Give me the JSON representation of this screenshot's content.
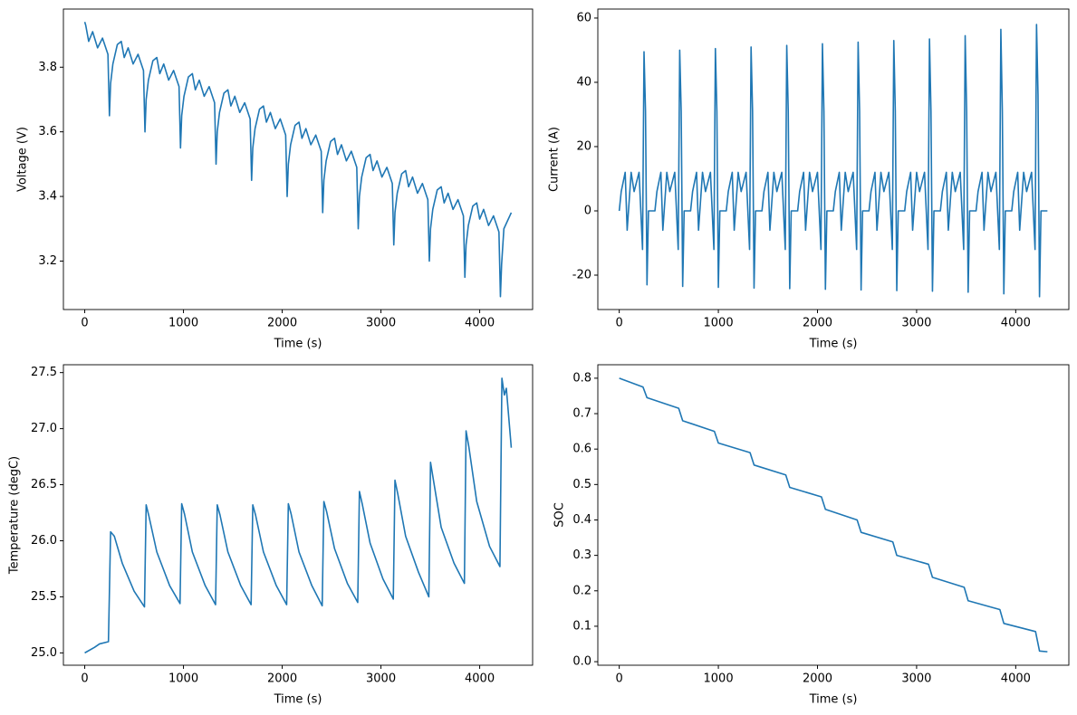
{
  "chart_data": [
    {
      "type": "line",
      "xlabel": "Time (s)",
      "ylabel": "Voltage (V)",
      "color": "#1f77b4",
      "x": [
        0,
        10,
        40,
        80,
        130,
        180,
        235,
        250,
        262,
        285,
        330,
        370,
        400,
        440,
        490,
        540,
        595,
        610,
        622,
        645,
        690,
        730,
        760,
        800,
        850,
        900,
        955,
        970,
        982,
        1005,
        1050,
        1090,
        1120,
        1160,
        1210,
        1260,
        1315,
        1330,
        1342,
        1365,
        1410,
        1450,
        1480,
        1520,
        1570,
        1620,
        1675,
        1690,
        1702,
        1725,
        1770,
        1810,
        1840,
        1880,
        1930,
        1980,
        2035,
        2050,
        2062,
        2085,
        2130,
        2170,
        2200,
        2240,
        2290,
        2340,
        2395,
        2410,
        2422,
        2445,
        2490,
        2530,
        2560,
        2600,
        2650,
        2700,
        2755,
        2770,
        2782,
        2805,
        2850,
        2890,
        2920,
        2960,
        3010,
        3060,
        3115,
        3130,
        3142,
        3165,
        3210,
        3250,
        3280,
        3320,
        3370,
        3420,
        3475,
        3490,
        3502,
        3525,
        3570,
        3610,
        3640,
        3680,
        3730,
        3780,
        3835,
        3850,
        3862,
        3885,
        3930,
        3970,
        4000,
        4040,
        4090,
        4140,
        4195,
        4210,
        4222,
        4245,
        4320
      ],
      "values": [
        3.94,
        3.93,
        3.88,
        3.91,
        3.86,
        3.89,
        3.84,
        3.65,
        3.75,
        3.81,
        3.87,
        3.88,
        3.83,
        3.86,
        3.81,
        3.84,
        3.79,
        3.6,
        3.7,
        3.76,
        3.82,
        3.83,
        3.78,
        3.81,
        3.76,
        3.79,
        3.74,
        3.55,
        3.65,
        3.71,
        3.77,
        3.78,
        3.73,
        3.76,
        3.71,
        3.74,
        3.69,
        3.5,
        3.6,
        3.66,
        3.72,
        3.73,
        3.68,
        3.71,
        3.66,
        3.69,
        3.64,
        3.45,
        3.55,
        3.61,
        3.67,
        3.68,
        3.63,
        3.66,
        3.61,
        3.64,
        3.59,
        3.4,
        3.5,
        3.56,
        3.62,
        3.63,
        3.58,
        3.61,
        3.56,
        3.59,
        3.54,
        3.35,
        3.45,
        3.51,
        3.57,
        3.58,
        3.53,
        3.56,
        3.51,
        3.54,
        3.49,
        3.3,
        3.4,
        3.46,
        3.52,
        3.53,
        3.48,
        3.51,
        3.46,
        3.49,
        3.44,
        3.25,
        3.35,
        3.41,
        3.47,
        3.48,
        3.43,
        3.46,
        3.41,
        3.44,
        3.39,
        3.2,
        3.3,
        3.36,
        3.42,
        3.43,
        3.38,
        3.41,
        3.36,
        3.39,
        3.34,
        3.15,
        3.25,
        3.31,
        3.37,
        3.38,
        3.33,
        3.36,
        3.31,
        3.34,
        3.29,
        3.09,
        3.19,
        3.3,
        3.35
      ],
      "xlim": [
        -216,
        4536
      ],
      "ylim": [
        3.05,
        3.98
      ],
      "xticks": [
        0,
        1000,
        2000,
        3000,
        4000
      ],
      "yticks": [
        3.2,
        3.4,
        3.6,
        3.8
      ]
    },
    {
      "type": "line",
      "xlabel": "Time (s)",
      "ylabel": "Current (A)",
      "color": "#1f77b4",
      "x": [
        0,
        20,
        60,
        80,
        120,
        150,
        200,
        235,
        250,
        265,
        280,
        295,
        360,
        380,
        420,
        440,
        480,
        510,
        560,
        595,
        610,
        625,
        640,
        655,
        720,
        740,
        780,
        800,
        840,
        870,
        920,
        955,
        970,
        985,
        1000,
        1015,
        1080,
        1100,
        1140,
        1160,
        1200,
        1230,
        1280,
        1315,
        1330,
        1345,
        1360,
        1375,
        1440,
        1460,
        1500,
        1520,
        1560,
        1590,
        1640,
        1675,
        1690,
        1705,
        1720,
        1735,
        1800,
        1820,
        1860,
        1880,
        1920,
        1950,
        2000,
        2035,
        2050,
        2065,
        2080,
        2095,
        2160,
        2180,
        2220,
        2240,
        2280,
        2310,
        2360,
        2395,
        2410,
        2425,
        2440,
        2455,
        2520,
        2540,
        2580,
        2600,
        2640,
        2670,
        2720,
        2755,
        2770,
        2785,
        2800,
        2815,
        2880,
        2900,
        2940,
        2960,
        3000,
        3030,
        3080,
        3115,
        3130,
        3145,
        3160,
        3175,
        3240,
        3260,
        3300,
        3320,
        3360,
        3390,
        3440,
        3475,
        3490,
        3505,
        3520,
        3535,
        3600,
        3620,
        3660,
        3680,
        3720,
        3750,
        3800,
        3835,
        3850,
        3865,
        3880,
        3895,
        3960,
        3980,
        4020,
        4040,
        4080,
        4110,
        4160,
        4195,
        4210,
        4225,
        4240,
        4255,
        4320
      ],
      "values": [
        0,
        6,
        12,
        -6,
        12,
        6,
        12,
        -12,
        49.5,
        31,
        -23,
        0,
        0,
        6,
        12,
        -6,
        12,
        6,
        12,
        -12,
        50,
        31,
        -23.5,
        0,
        0,
        6,
        12,
        -6,
        12,
        6,
        12,
        -12,
        50.5,
        31,
        -23.8,
        0,
        0,
        6,
        12,
        -6,
        12,
        6,
        12,
        -12,
        51,
        31,
        -24,
        0,
        0,
        6,
        12,
        -6,
        12,
        6,
        12,
        -12,
        51.5,
        31,
        -24.2,
        0,
        0,
        6,
        12,
        -6,
        12,
        6,
        12,
        -12,
        52,
        31,
        -24.4,
        0,
        0,
        6,
        12,
        -6,
        12,
        6,
        12,
        -12,
        52.5,
        31,
        -24.6,
        0,
        0,
        6,
        12,
        -6,
        12,
        6,
        12,
        -12,
        53,
        31,
        -24.8,
        0,
        0,
        6,
        12,
        -6,
        12,
        6,
        12,
        -12,
        53.5,
        31,
        -25,
        0,
        0,
        6,
        12,
        -6,
        12,
        6,
        12,
        -12,
        54.5,
        31,
        -25.3,
        0,
        0,
        6,
        12,
        -6,
        12,
        6,
        12,
        -12,
        56.5,
        31,
        -25.8,
        0,
        0,
        6,
        12,
        -6,
        12,
        6,
        12,
        -12,
        58,
        36,
        -26.7,
        0,
        0
      ],
      "xlim": [
        -216,
        4536
      ],
      "ylim": [
        -30.7,
        62.8
      ],
      "xticks": [
        0,
        1000,
        2000,
        3000,
        4000
      ],
      "yticks": [
        -20,
        0,
        20,
        40,
        60
      ]
    },
    {
      "type": "line",
      "xlabel": "Time (s)",
      "ylabel": "Temperature (degC)",
      "color": "#1f77b4",
      "x": [
        0,
        100,
        150,
        240,
        262,
        300,
        380,
        500,
        605,
        622,
        650,
        730,
        860,
        965,
        982,
        1010,
        1090,
        1220,
        1325,
        1342,
        1370,
        1450,
        1580,
        1685,
        1702,
        1730,
        1810,
        1940,
        2045,
        2062,
        2090,
        2170,
        2300,
        2405,
        2422,
        2450,
        2530,
        2660,
        2765,
        2782,
        2810,
        2890,
        3020,
        3125,
        3142,
        3170,
        3250,
        3380,
        3485,
        3502,
        3530,
        3610,
        3740,
        3845,
        3862,
        3890,
        3970,
        4100,
        4205,
        4225,
        4250,
        4270,
        4320
      ],
      "values": [
        25.0,
        25.05,
        25.08,
        25.1,
        26.08,
        26.04,
        25.8,
        25.55,
        25.41,
        26.32,
        26.22,
        25.9,
        25.6,
        25.44,
        26.33,
        26.24,
        25.9,
        25.6,
        25.43,
        26.32,
        26.23,
        25.9,
        25.6,
        25.43,
        26.32,
        26.23,
        25.9,
        25.6,
        25.43,
        26.33,
        26.24,
        25.9,
        25.6,
        25.42,
        26.35,
        26.26,
        25.93,
        25.62,
        25.45,
        26.44,
        26.33,
        25.98,
        25.66,
        25.48,
        26.54,
        26.42,
        26.04,
        25.72,
        25.5,
        26.7,
        26.55,
        26.12,
        25.8,
        25.62,
        26.98,
        26.84,
        26.35,
        25.95,
        25.77,
        27.45,
        27.3,
        27.36,
        26.83
      ],
      "xlim": [
        -216,
        4536
      ],
      "ylim": [
        24.89,
        27.57
      ],
      "xticks": [
        0,
        1000,
        2000,
        3000,
        4000
      ],
      "yticks": [
        {
          "value": 25,
          "label": "25.0"
        },
        25.5,
        {
          "value": 26,
          "label": "26.0"
        },
        26.5,
        {
          "value": 27,
          "label": "27.0"
        },
        27.5
      ]
    },
    {
      "type": "line",
      "xlabel": "Time (s)",
      "ylabel": "SOC",
      "color": "#1f77b4",
      "x": [
        0,
        240,
        280,
        600,
        640,
        960,
        1000,
        1320,
        1360,
        1680,
        1720,
        2040,
        2080,
        2400,
        2440,
        2760,
        2800,
        3120,
        3160,
        3480,
        3520,
        3840,
        3880,
        4200,
        4240,
        4320
      ],
      "values": [
        0.8,
        0.775,
        0.745,
        0.715,
        0.68,
        0.65,
        0.617,
        0.59,
        0.555,
        0.527,
        0.492,
        0.465,
        0.43,
        0.4,
        0.365,
        0.338,
        0.3,
        0.275,
        0.238,
        0.21,
        0.172,
        0.147,
        0.108,
        0.085,
        0.03,
        0.028
      ],
      "xlim": [
        -216,
        4536
      ],
      "ylim": [
        -0.01,
        0.838
      ],
      "xticks": [
        0,
        1000,
        2000,
        3000,
        4000
      ],
      "yticks": [
        {
          "value": 0,
          "label": "0.0"
        },
        0.1,
        0.2,
        0.3,
        0.4,
        0.5,
        0.6,
        0.7,
        0.8
      ]
    }
  ]
}
